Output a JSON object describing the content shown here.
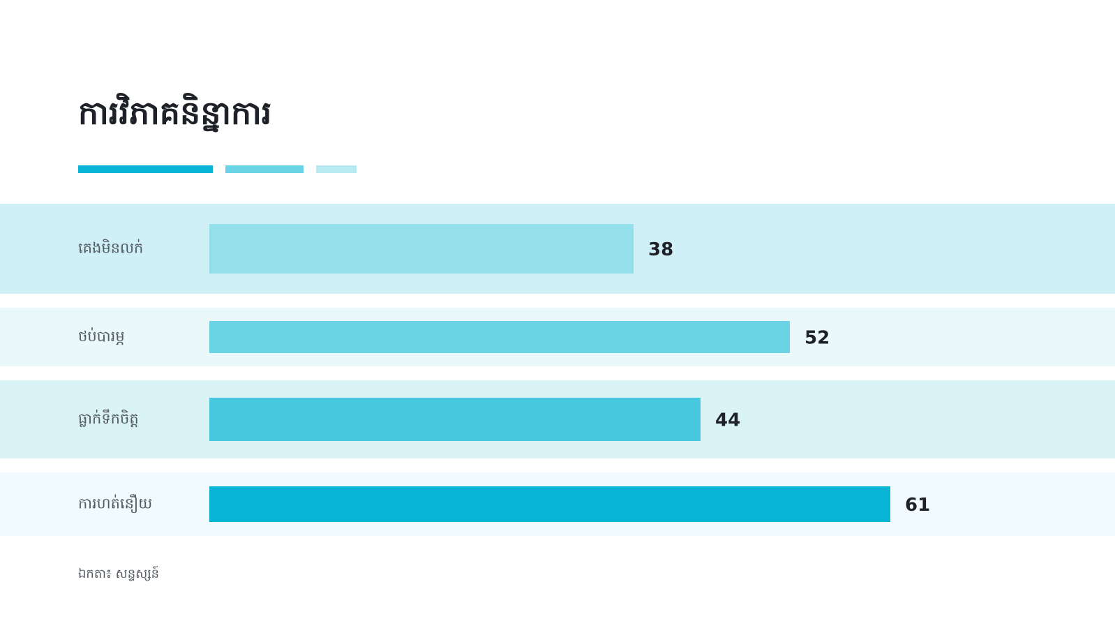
{
  "chart_data": {
    "type": "bar",
    "orientation": "horizontal",
    "title": "ការវិភាគនិន្នាការ",
    "categories": [
      "គេងមិនលក់",
      "ថប់បារម្ភ",
      "ធ្លាក់ទឹកចិត្ត",
      "ការហត់នឿយ"
    ],
    "values": [
      38,
      52,
      44,
      61
    ],
    "colors": [
      "#93dfea",
      "#6ad3e5",
      "#47c8de",
      "#08b5d4"
    ],
    "footnote": "ឯកតា៖ សន្ទស្សន៍"
  }
}
